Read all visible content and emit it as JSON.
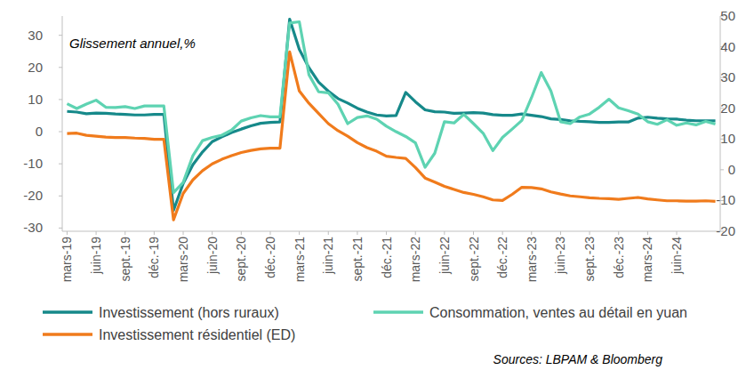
{
  "chart_data": {
    "type": "line",
    "title": "Glissement annuel,%",
    "annotations": [
      "Sources: LBPAM & Bloomberg"
    ],
    "categories": [
      "mars-19",
      null,
      null,
      "juin-19",
      null,
      null,
      "sept.-19",
      null,
      null,
      "déc.-19",
      null,
      null,
      "mars-20",
      null,
      null,
      "juin-20",
      null,
      null,
      "sept.-20",
      null,
      null,
      "déc.-20",
      null,
      null,
      "mars-21",
      null,
      null,
      "juin-21",
      null,
      null,
      "sept.-21",
      null,
      null,
      "déc.-21",
      null,
      null,
      "mars-22",
      null,
      null,
      "juin-22",
      null,
      null,
      "sept.-22",
      null,
      null,
      "déc.-22",
      null,
      null,
      "mars-23",
      null,
      null,
      "juin-23",
      null,
      null,
      "sept.-23",
      null,
      null,
      "déc.-23",
      null,
      null,
      "mars-24",
      null,
      null,
      "juin-24",
      null,
      null,
      null,
      null
    ],
    "ylim": [
      -31,
      36
    ],
    "yticks": [
      -30,
      -20,
      -10,
      0,
      10,
      20,
      30
    ],
    "y2lim": [
      -20,
      50
    ],
    "y2ticks": [
      -20,
      -10,
      0,
      10,
      20,
      30,
      40,
      50
    ],
    "grid": false,
    "legend": "bottom",
    "series": [
      {
        "name": "Investissement (hors ruraux)",
        "color": "#16898a",
        "axis": "y",
        "values": [
          6.3,
          6.1,
          5.6,
          5.8,
          5.7,
          5.5,
          5.4,
          5.2,
          5.2,
          5.4,
          5.4,
          -24.5,
          -16.1,
          -10.3,
          -6.3,
          -3.1,
          -1.6,
          -0.3,
          0.8,
          1.8,
          2.6,
          2.9,
          3.0,
          35.0,
          25.6,
          19.9,
          15.4,
          12.6,
          10.3,
          8.9,
          7.3,
          6.1,
          5.2,
          4.9,
          5.0,
          12.2,
          9.3,
          6.8,
          6.2,
          6.1,
          5.7,
          5.8,
          5.9,
          5.8,
          5.3,
          5.1,
          5.1,
          5.5,
          5.1,
          4.7,
          4.0,
          3.8,
          3.4,
          3.2,
          3.1,
          2.9,
          2.9,
          3.0,
          3.0,
          4.2,
          4.5,
          4.2,
          4.0,
          3.9,
          3.6,
          3.4,
          3.4,
          3.4
        ]
      },
      {
        "name": "Consommation, ventes au détail en yuan",
        "color": "#5ed3b2",
        "axis": "y",
        "values": [
          8.7,
          7.2,
          8.6,
          9.8,
          7.6,
          7.5,
          7.8,
          7.2,
          8.0,
          8.0,
          8.0,
          -19.0,
          -15.8,
          -7.5,
          -2.8,
          -1.8,
          -1.1,
          0.5,
          3.3,
          4.3,
          5.0,
          4.6,
          4.6,
          33.8,
          34.2,
          17.7,
          12.4,
          12.1,
          8.5,
          2.5,
          4.4,
          4.9,
          3.9,
          1.7,
          0.0,
          -1.5,
          -3.5,
          -11.1,
          -6.7,
          3.1,
          2.7,
          5.4,
          2.5,
          -0.5,
          -5.9,
          -1.8,
          0.8,
          3.5,
          10.6,
          18.4,
          12.7,
          3.1,
          2.5,
          4.6,
          5.5,
          7.6,
          10.1,
          7.4,
          6.5,
          5.5,
          3.1,
          2.3,
          3.7,
          2.0,
          2.7,
          2.1,
          3.2,
          2.4
        ]
      },
      {
        "name": "Investissement résidentiel (ED)",
        "color": "#f07b1c",
        "axis": "y2",
        "values": [
          11.8,
          11.9,
          11.2,
          10.9,
          10.6,
          10.5,
          10.5,
          10.3,
          10.2,
          9.9,
          9.9,
          -16.3,
          -7.7,
          -3.3,
          -0.3,
          1.9,
          3.4,
          4.6,
          5.6,
          6.3,
          6.8,
          7.0,
          7.0,
          38.3,
          25.6,
          21.6,
          18.3,
          15.0,
          12.7,
          10.9,
          8.8,
          7.2,
          6.0,
          4.4,
          4.0,
          3.7,
          0.7,
          -2.7,
          -4.0,
          -5.4,
          -6.4,
          -7.4,
          -8.0,
          -8.8,
          -9.8,
          -10.0,
          -8.0,
          -5.7,
          -5.8,
          -6.2,
          -7.2,
          -7.9,
          -8.5,
          -8.8,
          -9.1,
          -9.3,
          -9.4,
          -9.6,
          -9.3,
          -9.0,
          -9.5,
          -9.8,
          -10.1,
          -10.1,
          -10.2,
          -10.2,
          -10.1,
          -10.3
        ]
      }
    ]
  }
}
